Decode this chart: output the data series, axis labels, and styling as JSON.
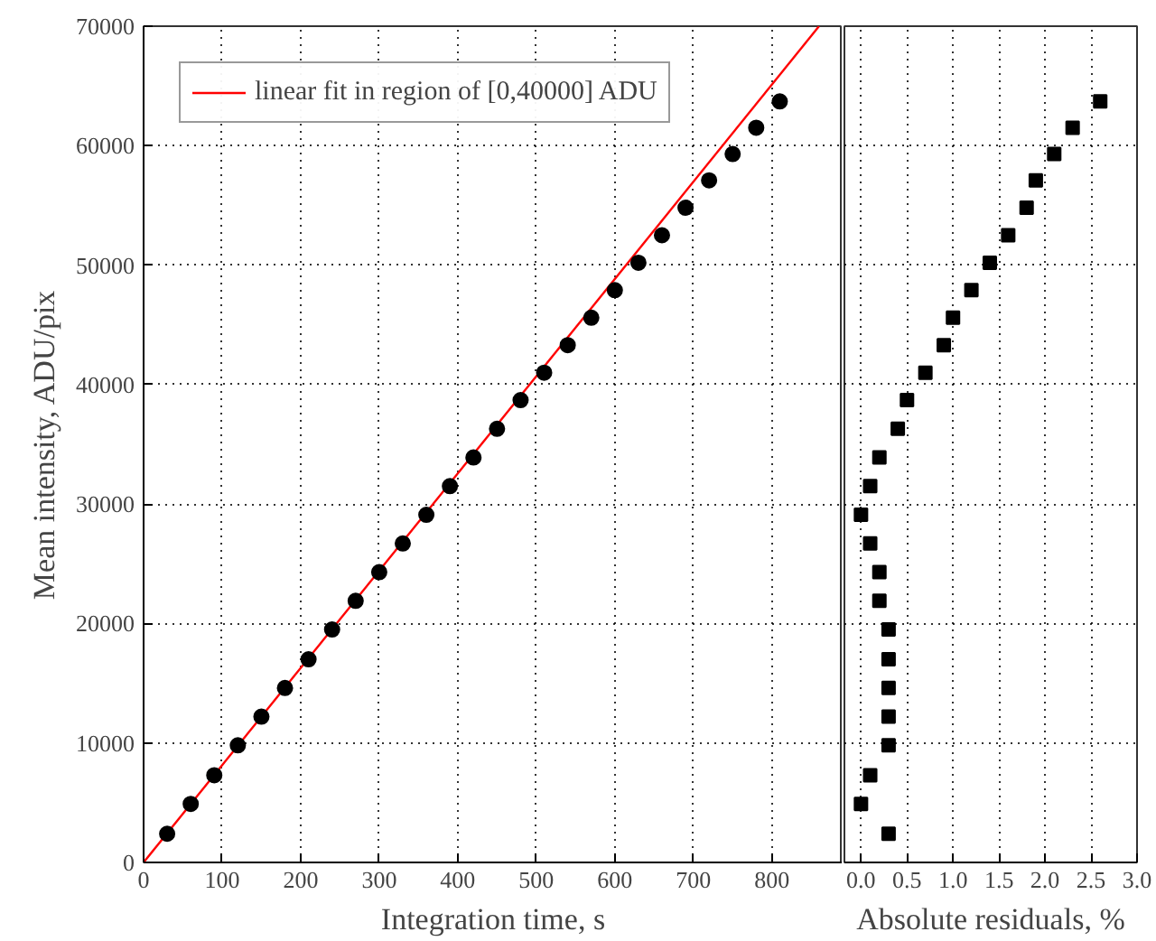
{
  "chart_data": [
    {
      "type": "scatter",
      "xlabel": "Integration time, s",
      "ylabel": "Mean intensity, ADU/pix",
      "xlim": [
        0,
        890
      ],
      "ylim": [
        0,
        70000
      ],
      "xticks": [
        0,
        100,
        200,
        300,
        400,
        500,
        600,
        700,
        800
      ],
      "yticks": [
        0,
        10000,
        20000,
        30000,
        40000,
        50000,
        60000,
        70000
      ],
      "grid": true,
      "legend": "top left",
      "series": [
        {
          "type": "line",
          "name": "linear fit in region of [0,40000] ADU",
          "color": "#ff0000",
          "marker": "none",
          "x": [
            0,
            860
          ],
          "values": [
            0,
            70000
          ]
        },
        {
          "color": "#000000",
          "marker": "circle",
          "x": [
            30,
            60,
            90,
            120,
            150,
            180,
            210,
            240,
            270,
            300,
            330,
            360,
            390,
            420,
            450,
            480,
            510,
            540,
            570,
            600,
            630,
            660,
            690,
            720,
            750,
            780,
            810
          ],
          "values": [
            2400,
            4900,
            7300,
            9800,
            12200,
            14600,
            17000,
            19500,
            21900,
            24300,
            26700,
            29100,
            31500,
            33900,
            36300,
            38700,
            41000,
            43300,
            45600,
            47900,
            50200,
            52500,
            54800,
            57100,
            59300,
            61500,
            63700
          ]
        }
      ]
    },
    {
      "type": "scatter",
      "xlabel": "Absolute residuals, %",
      "xlim": [
        -0.18,
        3.0
      ],
      "ylim": [
        0,
        70000
      ],
      "xticks": [
        {
          "value": 0,
          "label": "0.0"
        },
        0.5,
        {
          "value": 1,
          "label": "1.0"
        },
        1.5,
        {
          "value": 2,
          "label": "2.0"
        },
        2.5,
        {
          "value": 3,
          "label": "3.0"
        }
      ],
      "yticks": [
        0,
        10000,
        20000,
        30000,
        40000,
        50000,
        60000,
        70000
      ],
      "grid": true,
      "tick_labels": "x",
      "series": [
        {
          "color": "#000000",
          "marker": "square",
          "x": [
            0.3,
            0.0,
            0.1,
            0.3,
            0.3,
            0.3,
            0.3,
            0.3,
            0.2,
            0.2,
            0.1,
            0.0,
            0.1,
            0.2,
            0.4,
            0.5,
            0.7,
            0.9,
            1.0,
            1.2,
            1.4,
            1.6,
            1.8,
            1.9,
            2.1,
            2.3,
            2.6
          ],
          "values": [
            2400,
            4900,
            7300,
            9800,
            12200,
            14600,
            17000,
            19500,
            21900,
            24300,
            26700,
            29100,
            31500,
            33900,
            36300,
            38700,
            41000,
            43300,
            45600,
            47900,
            50200,
            52500,
            54800,
            57100,
            59300,
            61500,
            63700
          ]
        }
      ]
    }
  ]
}
